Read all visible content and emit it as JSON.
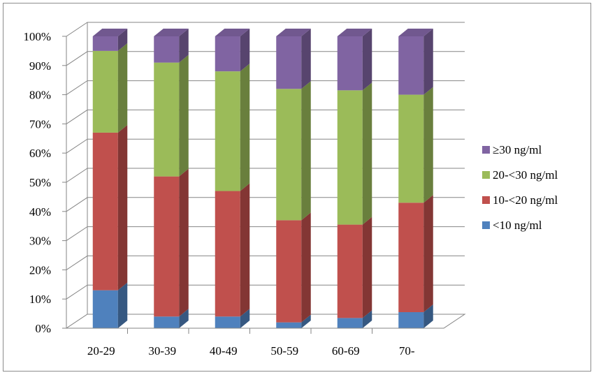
{
  "chart_data": {
    "type": "bar",
    "stacked": true,
    "percent_stacked": true,
    "three_d": true,
    "categories": [
      "20-29",
      "30-39",
      "40-49",
      "50-59",
      "60-69",
      "70-"
    ],
    "series": [
      {
        "name": "<10 ng/ml",
        "color": "#4f81bd",
        "values": [
          13,
          4,
          4,
          2,
          3.5,
          5.5
        ]
      },
      {
        "name": "10-<20 ng/ml",
        "color": "#c0504d",
        "values": [
          54,
          48,
          43,
          35,
          32,
          37.5
        ]
      },
      {
        "name": "20-<30 ng/ml",
        "color": "#9bbb59",
        "values": [
          28,
          39,
          41,
          45,
          46,
          37
        ]
      },
      {
        "name": "≥30 ng/ml",
        "color": "#8064a2",
        "values": [
          5,
          9,
          12,
          18,
          18.5,
          20
        ]
      }
    ],
    "y_ticks": [
      "0%",
      "10%",
      "20%",
      "30%",
      "40%",
      "50%",
      "60%",
      "70%",
      "80%",
      "90%",
      "100%"
    ],
    "ylim": [
      0,
      100
    ],
    "grid": true,
    "legend_position": "right",
    "legend_order": [
      "≥30 ng/ml",
      "20-<30 ng/ml",
      "10-<20 ng/ml",
      "<10 ng/ml"
    ]
  }
}
